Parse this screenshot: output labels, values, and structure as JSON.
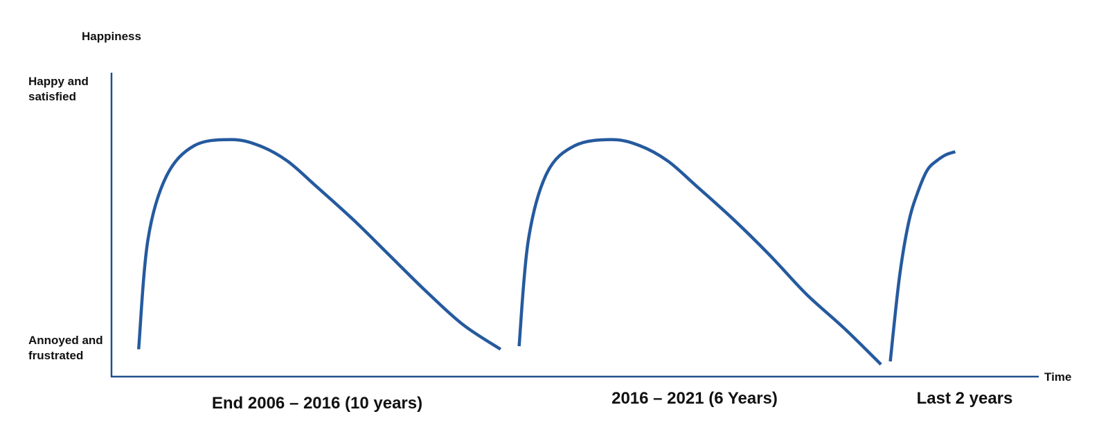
{
  "chart_data": {
    "type": "line",
    "ylabel": "Happiness",
    "xlabel": "Time",
    "y_ticks": [
      "Happy and satisfied",
      "Annoyed and frustrated"
    ],
    "ylim": [
      0,
      1
    ],
    "grid": false,
    "colors": {
      "line": "#255a9e",
      "axis": "#1f4e8c"
    },
    "series": [
      {
        "label": "End 2006 – 2016 (10 years)",
        "x": [
          0.03,
          0.04,
          0.06,
          0.09,
          0.13,
          0.16,
          0.19,
          0.22,
          0.26,
          0.3,
          0.34,
          0.38,
          0.42
        ],
        "y": [
          0.09,
          0.45,
          0.66,
          0.76,
          0.78,
          0.76,
          0.71,
          0.63,
          0.52,
          0.4,
          0.28,
          0.17,
          0.09
        ]
      },
      {
        "label": "2016 – 2021 (6 Years)",
        "x": [
          0.44,
          0.45,
          0.47,
          0.5,
          0.54,
          0.57,
          0.6,
          0.63,
          0.67,
          0.71,
          0.75,
          0.79,
          0.83
        ],
        "y": [
          0.1,
          0.45,
          0.67,
          0.76,
          0.78,
          0.76,
          0.71,
          0.63,
          0.52,
          0.4,
          0.27,
          0.16,
          0.04
        ]
      },
      {
        "label": "Last 2 years",
        "x": [
          0.84,
          0.85,
          0.86,
          0.87,
          0.88,
          0.89,
          0.9,
          0.91
        ],
        "y": [
          0.05,
          0.33,
          0.51,
          0.61,
          0.68,
          0.71,
          0.73,
          0.74
        ]
      }
    ]
  }
}
